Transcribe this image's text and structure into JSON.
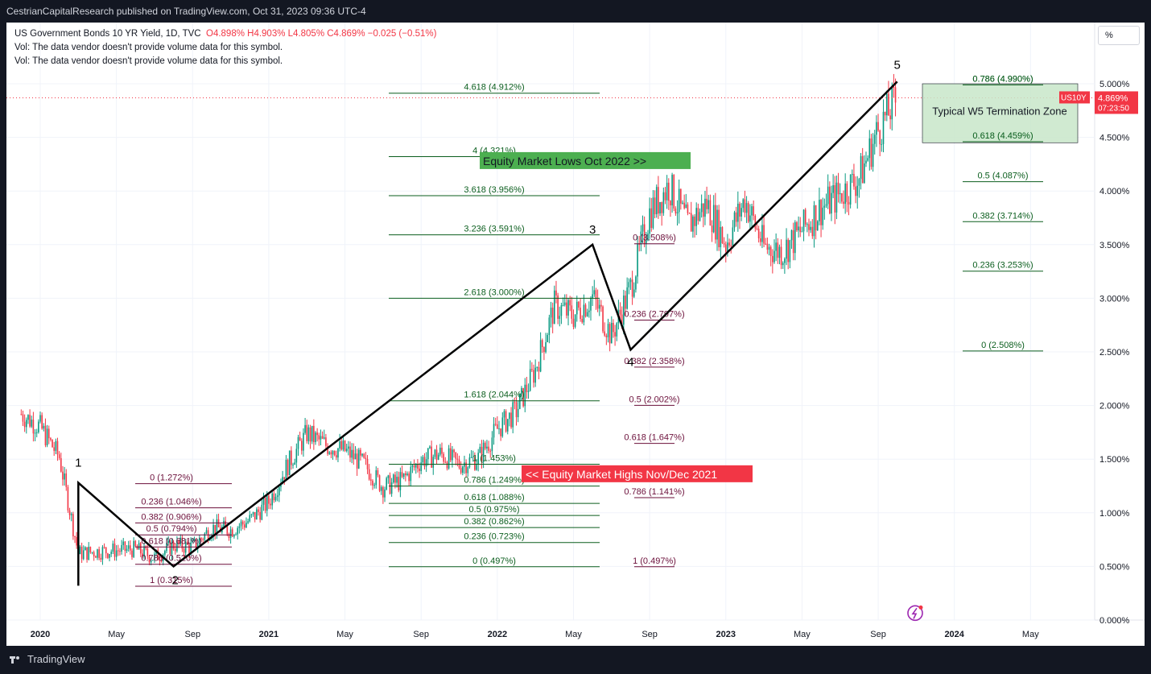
{
  "header": {
    "published": "CestrianCapitalResearch published on TradingView.com, Oct 31, 2023 09:36 UTC-4"
  },
  "legend": {
    "symbol": "US Government Bonds 10 YR Yield, 1D, TVC",
    "ohlc": "O4.898%  H4.903%  L4.805%  C4.869%  −0.025 (−0.51%)",
    "vol1": "Vol: The data vendor doesn't provide volume data for this symbol.",
    "vol2": "Vol: The data vendor doesn't provide volume data for this symbol."
  },
  "scale_button": "%",
  "footer": {
    "brand": "TradingView"
  },
  "colors": {
    "up": "#089981",
    "down": "#f23645",
    "green_fib": "#0b5e1e",
    "purple_fib": "#6b0f3a",
    "green_box": "#4caf50",
    "red_box": "#f23645",
    "zone_fill": "#c8e6c9"
  },
  "chart_data": {
    "type": "line",
    "title": "US Government Bonds 10 YR Yield",
    "ylabel": "",
    "ylim": [
      0.0,
      5.0
    ],
    "y_ticks": [
      "5.000%",
      "4.500%",
      "4.000%",
      "3.500%",
      "3.000%",
      "2.500%",
      "2.000%",
      "1.500%",
      "1.000%",
      "0.500%",
      "0.000%"
    ],
    "x_ticks": [
      "2020",
      "May",
      "Sep",
      "2021",
      "May",
      "Sep",
      "2022",
      "May",
      "Sep",
      "2023",
      "May",
      "Sep",
      "2024",
      "May"
    ],
    "last_value": {
      "symbol": "US10Y",
      "value": "4.869%",
      "countdown": "07:23:50"
    },
    "series": [
      {
        "name": "US10Y",
        "x": [
          "2019-12",
          "2020-01",
          "2020-02",
          "2020-03",
          "2020-04",
          "2020-05",
          "2020-06",
          "2020-07",
          "2020-08",
          "2020-09",
          "2020-10",
          "2020-11",
          "2020-12",
          "2021-01",
          "2021-02",
          "2021-03",
          "2021-04",
          "2021-05",
          "2021-06",
          "2021-07",
          "2021-08",
          "2021-09",
          "2021-10",
          "2021-11",
          "2021-12",
          "2022-01",
          "2022-02",
          "2022-03",
          "2022-04",
          "2022-05",
          "2022-06",
          "2022-07",
          "2022-08",
          "2022-09",
          "2022-10",
          "2022-11",
          "2022-12",
          "2023-01",
          "2023-02",
          "2023-03",
          "2023-04",
          "2023-05",
          "2023-06",
          "2023-07",
          "2023-08",
          "2023-09",
          "2023-10"
        ],
        "values": [
          1.92,
          1.8,
          1.52,
          0.62,
          0.64,
          0.65,
          0.66,
          0.58,
          0.7,
          0.68,
          0.86,
          0.84,
          0.93,
          1.1,
          1.45,
          1.74,
          1.63,
          1.58,
          1.45,
          1.24,
          1.3,
          1.49,
          1.55,
          1.45,
          1.51,
          1.78,
          1.95,
          2.34,
          2.93,
          2.84,
          3.01,
          2.65,
          3.1,
          3.8,
          4.05,
          3.68,
          3.88,
          3.51,
          3.92,
          3.48,
          3.44,
          3.64,
          3.84,
          3.97,
          4.12,
          4.57,
          4.87
        ]
      }
    ],
    "wave_labels": [
      "1",
      "2",
      "3",
      "4",
      "5"
    ],
    "wave_points": [
      {
        "label": "start",
        "x": "2020-03",
        "y": 0.32
      },
      {
        "label": "1",
        "x": "2020-03",
        "y": 1.28
      },
      {
        "label": "2",
        "x": "2020-08",
        "y": 0.5
      },
      {
        "label": "3",
        "x": "2022-06",
        "y": 3.5
      },
      {
        "label": "4",
        "x": "2022-08",
        "y": 2.52
      },
      {
        "label": "5",
        "x": "2023-10",
        "y": 5.02
      }
    ],
    "fib_sets": [
      {
        "levels": [
          "0 (1.272%)",
          "0.236 (1.046%)",
          "0.382 (0.906%)",
          "0.5 (0.794%)",
          "0.618 (0.681%)",
          "0.786 (0.520%)",
          "1 (0.315%)"
        ],
        "values": [
          1.272,
          1.046,
          0.906,
          0.794,
          0.681,
          0.52,
          0.315
        ]
      },
      {
        "levels": [
          "4.618 (4.912%)",
          "4 (4.321%)",
          "3.618 (3.956%)",
          "3.236 (3.591%)",
          "2.618 (3.000%)",
          "1.618 (2.044%)",
          "1 (1.453%)",
          "0.786 (1.249%)",
          "0.618 (1.088%)",
          "0.5 (0.975%)",
          "0.382 (0.862%)",
          "0.236 (0.723%)",
          "0 (0.497%)"
        ],
        "values": [
          4.912,
          4.321,
          3.956,
          3.591,
          3.0,
          2.044,
          1.453,
          1.249,
          1.088,
          0.975,
          0.862,
          0.723,
          0.497
        ]
      },
      {
        "levels": [
          "0 (3.508%)",
          "0.236 (2.797%)",
          "0.382 (2.358%)",
          "0.5 (2.002%)",
          "0.618 (1.647%)",
          "0.786 (1.141%)",
          "1 (0.497%)"
        ],
        "values": [
          3.508,
          2.797,
          2.358,
          2.002,
          1.647,
          1.141,
          0.497
        ]
      },
      {
        "levels": [
          "0.786 (4.990%)",
          "0.618 (4.459%)",
          "0.5 (4.087%)",
          "0.382 (3.714%)",
          "0.236 (3.253%)",
          "0 (2.508%)"
        ],
        "values": [
          4.99,
          4.459,
          4.087,
          3.714,
          3.253,
          2.508
        ]
      }
    ],
    "annotations": {
      "equity_lows": "Equity Market Lows Oct 2022 >>",
      "equity_highs": "<< Equity Market Highs Nov/Dec 2021",
      "w5_zone": "Typical W5 Termination Zone"
    }
  }
}
